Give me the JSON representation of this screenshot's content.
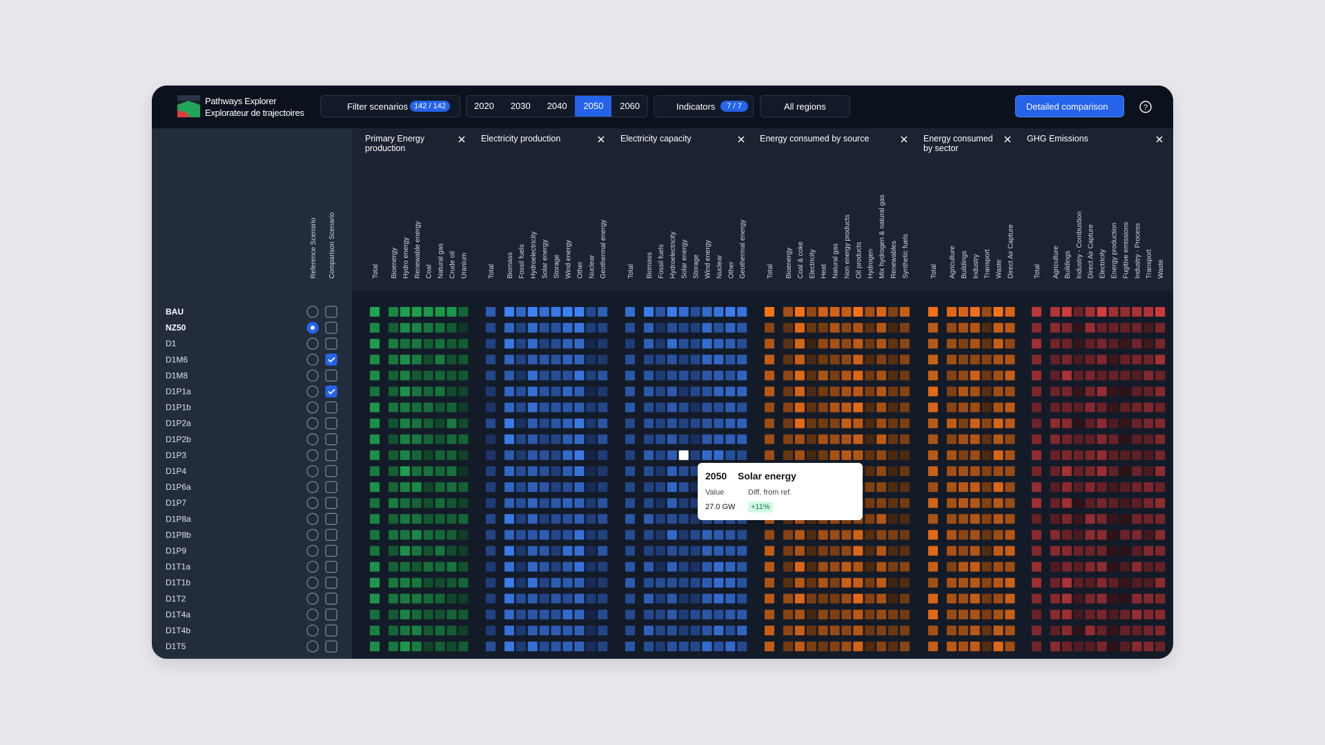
{
  "header": {
    "logo_line1": "Pathways Explorer",
    "logo_line2": "Explorateur de trajectoires",
    "filter_label": "Filter scenarios",
    "filter_count": "142 / 142",
    "years": [
      "2020",
      "2030",
      "2040",
      "2050",
      "2060"
    ],
    "active_year": "2050",
    "indicators_label": "Indicators",
    "indicators_count": "7 / 7",
    "regions": "All regions",
    "detailed_button": "Detailed comparison"
  },
  "selector_columns": [
    "Reference Scenario",
    "Comparison Scenario"
  ],
  "groups": [
    {
      "title": "Primary Energy production",
      "columns": [
        "Total",
        "Bioenergy",
        "Hydro energy",
        "Renewable energy",
        "Coal",
        "Natural gas",
        "Crude oil",
        "Uranium"
      ]
    },
    {
      "title": "Electricity production",
      "columns": [
        "Total",
        "Biomass",
        "Fossil fuels",
        "Hydroelectricity",
        "Solar energy",
        "Storage",
        "Wind energy",
        "Other",
        "Nuclear",
        "Geothermal energy"
      ]
    },
    {
      "title": "Electricity capacity",
      "columns": [
        "Total",
        "Biomass",
        "Fossil fuels",
        "Hydroelectricity",
        "Solar energy",
        "Storage",
        "Wind energy",
        "Nuclear",
        "Other",
        "Geothermal energy"
      ]
    },
    {
      "title": "Energy consumed by source",
      "columns": [
        "Total",
        "Bioenergy",
        "Coal & coke",
        "Electricity",
        "Heat",
        "Natural gas",
        "Non energy products",
        "Oil products",
        "Hydrogen",
        "Mix hydrogen & natural gas",
        "Renewables",
        "Synthetic fuels"
      ]
    },
    {
      "title": "Energy consumed by sector",
      "columns": [
        "Total",
        "Agriculture",
        "Buildings",
        "Industry",
        "Transport",
        "Waste",
        "Direct Air Capture"
      ]
    },
    {
      "title": "GHG Emissions",
      "columns": [
        "Total",
        "Agriculture",
        "Buildings",
        "Industry - Combustion",
        "Direct Air Capture",
        "Electricity",
        "Energy production",
        "Fugitive emissions",
        "Industry - Process",
        "Transport",
        "Waste"
      ]
    }
  ],
  "scenarios": [
    {
      "name": "BAU",
      "reference": false,
      "comparison": false
    },
    {
      "name": "NZ50",
      "reference": true,
      "comparison": false
    },
    {
      "name": "D1",
      "reference": false,
      "comparison": false
    },
    {
      "name": "D1M6",
      "reference": false,
      "comparison": true
    },
    {
      "name": "D1M8",
      "reference": false,
      "comparison": false
    },
    {
      "name": "D1P1a",
      "reference": false,
      "comparison": true
    },
    {
      "name": "D1P1b",
      "reference": false,
      "comparison": false
    },
    {
      "name": "D1P2a",
      "reference": false,
      "comparison": false
    },
    {
      "name": "D1P2b",
      "reference": false,
      "comparison": false
    },
    {
      "name": "D1P3",
      "reference": false,
      "comparison": false
    },
    {
      "name": "D1P4",
      "reference": false,
      "comparison": false
    },
    {
      "name": "D1P6a",
      "reference": false,
      "comparison": false
    },
    {
      "name": "D1P7",
      "reference": false,
      "comparison": false
    },
    {
      "name": "D1P8a",
      "reference": false,
      "comparison": false
    },
    {
      "name": "D1P8b",
      "reference": false,
      "comparison": false
    },
    {
      "name": "D1P9",
      "reference": false,
      "comparison": false
    },
    {
      "name": "D1T1a",
      "reference": false,
      "comparison": false
    },
    {
      "name": "D1T1b",
      "reference": false,
      "comparison": false
    },
    {
      "name": "D1T2",
      "reference": false,
      "comparison": false
    },
    {
      "name": "D1T4a",
      "reference": false,
      "comparison": false
    },
    {
      "name": "D1T4b",
      "reference": false,
      "comparison": false
    },
    {
      "name": "D1T5",
      "reference": false,
      "comparison": false
    }
  ],
  "tooltip": {
    "year": "2050",
    "indicator": "Solar energy",
    "value_label": "Value",
    "value": "27.0 GW",
    "diff_label": "Diff. from ref.",
    "diff": "+11%"
  }
}
